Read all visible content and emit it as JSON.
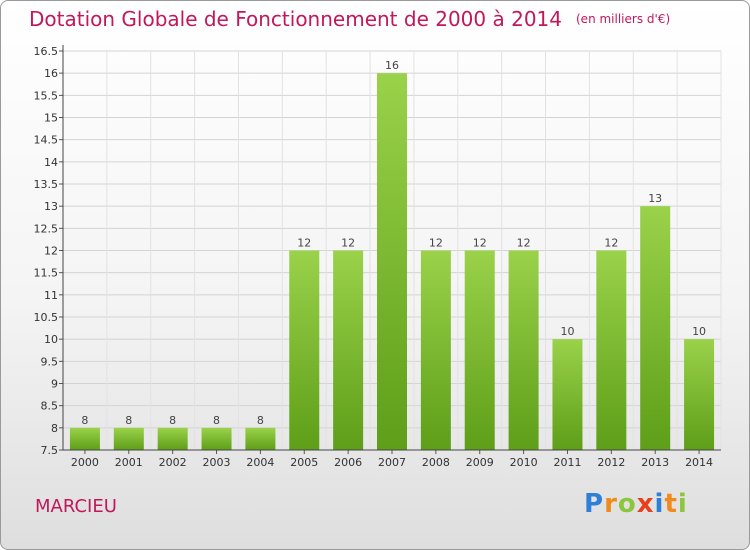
{
  "title": "Dotation Globale de Fonctionnement de 2000 à 2014",
  "unit_note": "(en milliers d'€)",
  "place": "MARCIEU",
  "logo": {
    "letters": [
      "P",
      "r",
      "o",
      "x",
      "i",
      "t",
      "i"
    ],
    "colors": [
      "#2e7fd8",
      "#f08a1c",
      "#8cc63f",
      "#e8401c",
      "#2e7fd8",
      "#f08a1c",
      "#8cc63f"
    ]
  },
  "colors": {
    "bar_top": "#9ad24a",
    "bar_bottom": "#5e9e18",
    "title": "#c2185b"
  },
  "chart_data": {
    "type": "bar",
    "categories": [
      "2000",
      "2001",
      "2002",
      "2003",
      "2004",
      "2005",
      "2006",
      "2007",
      "2008",
      "2009",
      "2010",
      "2011",
      "2012",
      "2013",
      "2014"
    ],
    "values": [
      8,
      8,
      8,
      8,
      8,
      12,
      12,
      16,
      12,
      12,
      12,
      10,
      12,
      13,
      10
    ],
    "value_labels": [
      "8",
      "8",
      "8",
      "8",
      "8",
      "12",
      "12",
      "16",
      "12",
      "12",
      "12",
      "10",
      "12",
      "13",
      "10"
    ],
    "ylim": [
      7.5,
      16.5
    ],
    "yticks": [
      7.5,
      8,
      8.5,
      9,
      9.5,
      10,
      10.5,
      11,
      11.5,
      12,
      12.5,
      13,
      13.5,
      14,
      14.5,
      15,
      15.5,
      16,
      16.5
    ],
    "ytick_labels": [
      "7.5",
      "8",
      "8.5",
      "9",
      "9.5",
      "10",
      "10.5",
      "11",
      "11.5",
      "12",
      "12.5",
      "13",
      "13.5",
      "14",
      "14.5",
      "15",
      "15.5",
      "16",
      "16.5"
    ],
    "grid": true
  }
}
